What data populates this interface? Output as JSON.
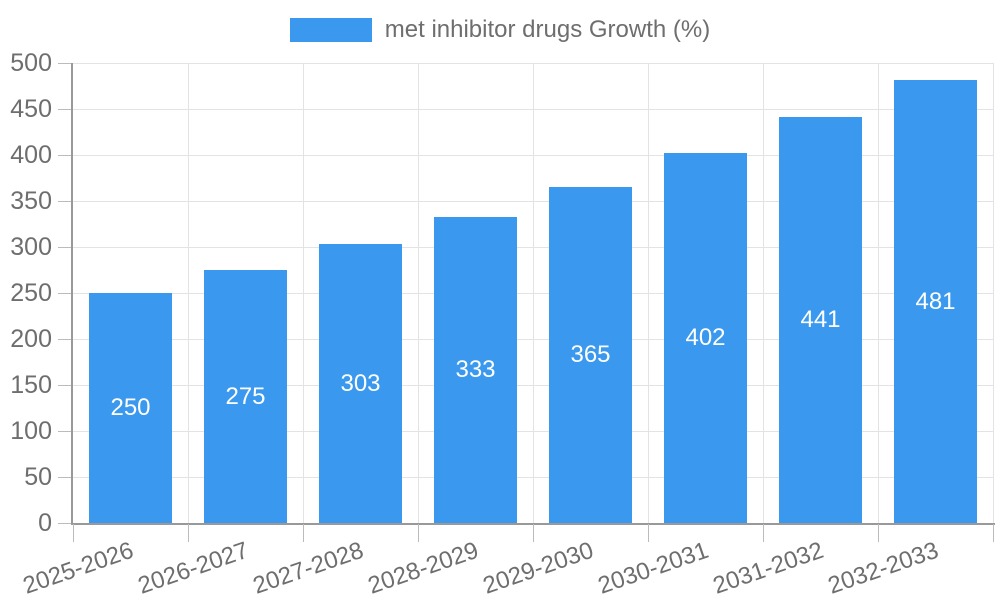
{
  "legend": {
    "label": "met inhibitor drugs Growth (%)"
  },
  "colors": {
    "bar": "#3a99ee",
    "axis": "#999999",
    "grid": "#e3e3e3",
    "tick": "#bbbbbb",
    "text": "#6e6e6e",
    "value_text": "#ffffff",
    "background": "#ffffff"
  },
  "chart_data": {
    "type": "bar",
    "title": "",
    "series_name": "met inhibitor drugs Growth (%)",
    "categories": [
      "2025-2026",
      "2026-2027",
      "2027-2028",
      "2028-2029",
      "2029-2030",
      "2030-2031",
      "2031-2032",
      "2032-2033"
    ],
    "values": [
      250,
      275,
      303,
      333,
      365,
      402,
      441,
      481
    ],
    "xlabel": "",
    "ylabel": "",
    "ylim": [
      0,
      500
    ],
    "ytick_step": 50,
    "yticks": [
      0,
      50,
      100,
      150,
      200,
      250,
      300,
      350,
      400,
      450,
      500
    ],
    "grid": true,
    "legend_position": "top-center",
    "value_labels_position": "inside-center",
    "x_label_rotation_deg": -19
  }
}
